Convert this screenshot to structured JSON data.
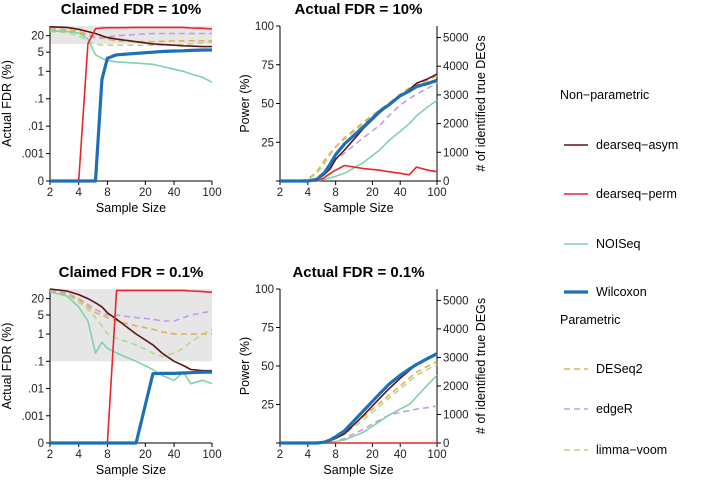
{
  "chart_data": [
    {
      "type": "line",
      "title": "Claimed FDR = 10%",
      "xlabel": "Sample Size",
      "ylabel": "Actual FDR (%)",
      "x_scale": "log",
      "y_scale": "pseudo-log",
      "x_ticks": [
        "2",
        "4",
        "8",
        "20",
        "40",
        "100"
      ],
      "y_ticks": [
        "0",
        ".001",
        ".01",
        ".1",
        "1",
        "5",
        "20"
      ],
      "shaded_band": [
        10,
        45
      ],
      "x": [
        2,
        3,
        4,
        5,
        6,
        7,
        8,
        10,
        16,
        24,
        30,
        40,
        50,
        60,
        80,
        100
      ],
      "series": [
        {
          "name": "dearseq-asym",
          "values": [
            42,
            40,
            34,
            28,
            24,
            20,
            17,
            15,
            12,
            10,
            9.5,
            9,
            8.5,
            8.3,
            8,
            8
          ]
        },
        {
          "name": "dearseq-perm",
          "values": [
            0,
            0,
            0,
            10,
            36,
            38,
            39,
            39,
            40,
            40,
            40,
            40,
            40,
            38,
            37,
            35
          ]
        },
        {
          "name": "NOISeq",
          "values": [
            30,
            28,
            25,
            15,
            4,
            3,
            2.5,
            2.2,
            2,
            1.8,
            1.5,
            1.2,
            1,
            0.8,
            0.6,
            0.4
          ]
        },
        {
          "name": "Wilcoxon",
          "values": [
            0,
            0,
            0,
            0,
            0,
            0.5,
            3,
            4,
            4.5,
            5,
            5.3,
            5.5,
            5.6,
            5.8,
            6,
            6
          ]
        },
        {
          "name": "DESeq2",
          "values": [
            36,
            33,
            28,
            22,
            19,
            17,
            15,
            13,
            12,
            12,
            12.5,
            13,
            13,
            13,
            13,
            13
          ]
        },
        {
          "name": "edgeR",
          "values": [
            30,
            29,
            25,
            20,
            17,
            16,
            18,
            20,
            22,
            24,
            24,
            24,
            24,
            24,
            24,
            24
          ]
        },
        {
          "name": "limma-voom",
          "values": [
            28,
            26,
            20,
            12,
            10,
            9,
            9,
            9,
            9,
            9,
            9,
            9,
            9.5,
            10,
            11,
            12
          ]
        }
      ]
    },
    {
      "type": "line",
      "title": "Actual FDR = 10%",
      "xlabel": "Sample Size",
      "ylabel": "Power (%)",
      "ylabel_right": "# of identified true DEGs",
      "x_scale": "log",
      "ylim": [
        0,
        100
      ],
      "ylim_right": [
        0,
        5400
      ],
      "x_ticks": [
        "2",
        "4",
        "8",
        "20",
        "40",
        "100"
      ],
      "y_ticks": [
        "",
        "25",
        "50",
        "75",
        "100"
      ],
      "y_ticks_right": [
        "0",
        "1000",
        "2000",
        "3000",
        "4000",
        "5000"
      ],
      "x": [
        2,
        3,
        4,
        5,
        6,
        7,
        8,
        10,
        16,
        24,
        30,
        40,
        50,
        60,
        80,
        100
      ],
      "series": [
        {
          "name": "dearseq-asym",
          "values": [
            0,
            0,
            0,
            1,
            4,
            8,
            14,
            20,
            34,
            44,
            49,
            55,
            59,
            63,
            66,
            69
          ]
        },
        {
          "name": "dearseq-perm",
          "values": [
            0,
            0,
            0,
            0,
            2,
            5,
            7,
            10,
            8,
            7,
            6,
            5,
            4,
            9,
            7,
            6
          ]
        },
        {
          "name": "NOISeq",
          "values": [
            0,
            0,
            0,
            0,
            1,
            2,
            3,
            5,
            12,
            20,
            26,
            32,
            37,
            42,
            48,
            52
          ]
        },
        {
          "name": "Wilcoxon",
          "values": [
            0,
            0,
            0,
            1,
            5,
            11,
            17,
            24,
            35,
            45,
            49,
            55,
            58,
            61,
            63,
            65
          ]
        },
        {
          "name": "DESeq2",
          "values": [
            0,
            0,
            1,
            6,
            13,
            18,
            22,
            28,
            38,
            46,
            50,
            56,
            60,
            62,
            65,
            68
          ]
        },
        {
          "name": "edgeR",
          "values": [
            0,
            0,
            0,
            2,
            6,
            10,
            14,
            18,
            28,
            36,
            42,
            49,
            53,
            56,
            60,
            63
          ]
        },
        {
          "name": "limma-voom",
          "values": [
            0,
            0,
            1,
            5,
            11,
            17,
            22,
            27,
            37,
            45,
            50,
            55,
            58,
            60,
            62,
            64
          ]
        }
      ]
    },
    {
      "type": "line",
      "title": "Claimed FDR = 0.1%",
      "xlabel": "Sample Size",
      "ylabel": "Actual FDR (%)",
      "x_scale": "log",
      "y_scale": "pseudo-log",
      "x_ticks": [
        "2",
        "4",
        "8",
        "20",
        "40",
        "100"
      ],
      "y_ticks": [
        "0",
        ".001",
        ".01",
        ".1",
        "1",
        "5",
        "20"
      ],
      "shaded_band": [
        0.1,
        45
      ],
      "x": [
        2,
        3,
        4,
        5,
        6,
        7,
        8,
        10,
        16,
        24,
        30,
        40,
        50,
        60,
        80,
        100
      ],
      "series": [
        {
          "name": "dearseq-asym",
          "values": [
            45,
            38,
            28,
            20,
            14,
            10,
            6,
            3.5,
            1,
            0.4,
            0.2,
            0.1,
            0.07,
            0.05,
            0.045,
            0.045
          ]
        },
        {
          "name": "dearseq-perm",
          "values": [
            0,
            0,
            0,
            0,
            0,
            0,
            0,
            40,
            40,
            40,
            40,
            40,
            40,
            38,
            36,
            34
          ]
        },
        {
          "name": "NOISeq",
          "values": [
            35,
            25,
            10,
            3,
            0.2,
            0.5,
            0.3,
            0.2,
            0.1,
            0.05,
            0.03,
            0.02,
            0.04,
            0.015,
            0.02,
            0.015
          ]
        },
        {
          "name": "Wilcoxon",
          "values": [
            0,
            0,
            0,
            0,
            0,
            0,
            0,
            0,
            0,
            0.035,
            0.036,
            0.036,
            0.037,
            0.038,
            0.04,
            0.04
          ]
        },
        {
          "name": "DESeq2",
          "values": [
            38,
            30,
            18,
            10,
            6,
            5,
            4,
            3,
            2,
            1.5,
            1.2,
            1,
            1,
            1,
            1,
            1
          ]
        },
        {
          "name": "edgeR",
          "values": [
            40,
            32,
            20,
            12,
            8,
            6,
            5,
            5,
            4,
            3.5,
            3,
            3,
            4,
            5,
            6,
            7
          ]
        },
        {
          "name": "limma-voom",
          "values": [
            36,
            28,
            15,
            8,
            4,
            2,
            1,
            0.7,
            0.4,
            0.2,
            0.15,
            0.2,
            0.3,
            0.5,
            1,
            1.5
          ]
        }
      ]
    },
    {
      "type": "line",
      "title": "Actual FDR = 0.1%",
      "xlabel": "Sample Size",
      "ylabel": "Power (%)",
      "ylabel_right": "# of identified true DEGs",
      "x_scale": "log",
      "ylim": [
        0,
        100
      ],
      "ylim_right": [
        0,
        5400
      ],
      "x_ticks": [
        "2",
        "4",
        "8",
        "20",
        "40",
        "100"
      ],
      "y_ticks": [
        "",
        "25",
        "50",
        "75",
        "100"
      ],
      "y_ticks_right": [
        "0",
        "1000",
        "2000",
        "3000",
        "4000",
        "5000"
      ],
      "x": [
        2,
        3,
        4,
        5,
        6,
        7,
        8,
        10,
        16,
        24,
        30,
        40,
        50,
        60,
        80,
        100
      ],
      "series": [
        {
          "name": "dearseq-asym",
          "values": [
            0,
            0,
            0,
            0,
            0.5,
            1.5,
            3,
            6,
            18,
            29,
            35,
            42,
            47,
            51,
            55,
            58
          ]
        },
        {
          "name": "dearseq-perm",
          "values": [
            0,
            0,
            0,
            0,
            0,
            0,
            0,
            0,
            0,
            0,
            0,
            0,
            0,
            0,
            0,
            0
          ]
        },
        {
          "name": "NOISeq",
          "values": [
            0,
            0,
            0,
            0,
            0,
            0.5,
            1,
            2,
            7,
            14,
            18,
            22,
            25,
            30,
            38,
            44
          ]
        },
        {
          "name": "Wilcoxon",
          "values": [
            0,
            0,
            0,
            0,
            0.5,
            2,
            4,
            8,
            21,
            32,
            38,
            44,
            48,
            51,
            55,
            58
          ]
        },
        {
          "name": "DESeq2",
          "values": [
            0,
            0,
            0,
            0,
            0.5,
            2,
            4,
            7,
            17,
            26,
            31,
            37,
            42,
            46,
            50,
            53
          ]
        },
        {
          "name": "edgeR",
          "values": [
            0,
            0,
            0,
            0,
            0,
            0.5,
            1,
            3,
            9,
            15,
            18,
            20,
            21,
            22,
            23,
            24
          ]
        },
        {
          "name": "limma-voom",
          "values": [
            0,
            0,
            0,
            0,
            0.5,
            1.5,
            3,
            6,
            15,
            24,
            29,
            35,
            40,
            44,
            48,
            51
          ]
        }
      ]
    }
  ],
  "legend": {
    "placement": "right",
    "groups": [
      {
        "title": "Non−parametric",
        "items": [
          {
            "name": "dearseq−asym",
            "color": "#5c1414",
            "style": "solid"
          },
          {
            "name": "dearseq−perm",
            "color": "#e8262b",
            "style": "solid"
          },
          {
            "name": "NOISeq",
            "color": "#7fd2ac",
            "style": "solid"
          },
          {
            "name": "Wilcoxon",
            "color": "#1f6fb7",
            "style": "solid-thick"
          }
        ]
      },
      {
        "title": "Parametric",
        "items": [
          {
            "name": "DESeq2",
            "color": "#e3b14f",
            "style": "dashed"
          },
          {
            "name": "edgeR",
            "color": "#c89ae0",
            "style": "dashed"
          },
          {
            "name": "limma−voom",
            "color": "#b5d98c",
            "style": "dashed"
          }
        ]
      }
    ]
  },
  "colors": {
    "dearseq-asym": "#5c1414",
    "dearseq-perm": "#e8262b",
    "NOISeq": "#7fd2ac",
    "Wilcoxon": "#1f6fb7",
    "DESeq2": "#e3b14f",
    "edgeR": "#c89ae0",
    "limma-voom": "#b5d98c",
    "band": "#e6e6e6"
  }
}
